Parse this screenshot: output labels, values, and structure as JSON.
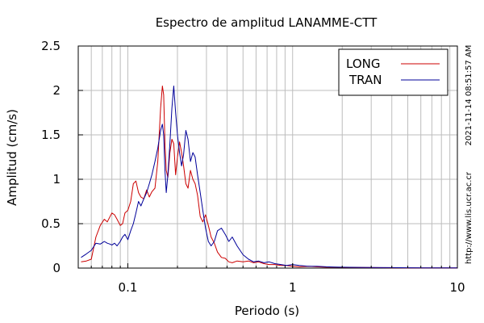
{
  "chart_data": {
    "type": "line",
    "title": "Espectro de amplitud LANAMME-CTT",
    "xlabel": "Periodo (s)",
    "ylabel": "Amplitud (cm/s)",
    "x_scale": "log",
    "xlim": [
      0.05,
      10
    ],
    "ylim": [
      0,
      2.5
    ],
    "grid": true,
    "legend_position": "top-right",
    "x_ticks": [
      {
        "value": 0.1,
        "label": "0.1"
      },
      {
        "value": 1,
        "label": "1"
      },
      {
        "value": 10,
        "label": "10"
      }
    ],
    "y_ticks": [
      {
        "value": 0,
        "label": "0"
      },
      {
        "value": 0.5,
        "label": "0.5"
      },
      {
        "value": 1,
        "label": "1"
      },
      {
        "value": 1.5,
        "label": "1.5"
      },
      {
        "value": 2,
        "label": "2"
      },
      {
        "value": 2.5,
        "label": "2.5"
      }
    ],
    "series": [
      {
        "name": "LONG",
        "color": "#cc0000",
        "x": [
          0.052,
          0.056,
          0.06,
          0.064,
          0.068,
          0.072,
          0.075,
          0.078,
          0.08,
          0.083,
          0.086,
          0.09,
          0.093,
          0.096,
          0.1,
          0.104,
          0.108,
          0.112,
          0.116,
          0.12,
          0.125,
          0.13,
          0.135,
          0.14,
          0.146,
          0.152,
          0.158,
          0.162,
          0.165,
          0.168,
          0.171,
          0.175,
          0.18,
          0.185,
          0.19,
          0.195,
          0.2,
          0.206,
          0.212,
          0.218,
          0.225,
          0.232,
          0.24,
          0.248,
          0.256,
          0.265,
          0.275,
          0.285,
          0.296,
          0.308,
          0.32,
          0.335,
          0.35,
          0.37,
          0.39,
          0.41,
          0.43,
          0.46,
          0.5,
          0.54,
          0.58,
          0.62,
          0.67,
          0.72,
          0.78,
          0.85,
          0.92,
          1.0,
          1.1,
          1.25,
          1.4,
          1.6,
          1.8,
          2.0,
          2.5,
          3.0,
          4.0,
          5.0,
          6.5,
          8.0,
          10.0
        ],
        "y": [
          0.07,
          0.08,
          0.1,
          0.35,
          0.48,
          0.55,
          0.52,
          0.58,
          0.62,
          0.6,
          0.55,
          0.48,
          0.5,
          0.62,
          0.65,
          0.75,
          0.95,
          0.98,
          0.85,
          0.8,
          0.78,
          0.88,
          0.8,
          0.86,
          0.9,
          1.2,
          1.8,
          2.05,
          1.95,
          1.4,
          1.1,
          1.02,
          1.3,
          1.45,
          1.4,
          1.05,
          1.25,
          1.42,
          1.3,
          1.15,
          0.95,
          0.9,
          1.1,
          1.0,
          0.95,
          0.82,
          0.58,
          0.52,
          0.6,
          0.48,
          0.35,
          0.28,
          0.18,
          0.12,
          0.11,
          0.07,
          0.06,
          0.08,
          0.07,
          0.08,
          0.06,
          0.07,
          0.05,
          0.04,
          0.04,
          0.03,
          0.03,
          0.02,
          0.015,
          0.02,
          0.015,
          0.01,
          0.01,
          0.008,
          0.006,
          0.005,
          0.004,
          0.003,
          0.003,
          0.002,
          0.002
        ]
      },
      {
        "name": "TRAN",
        "color": "#000099",
        "x": [
          0.052,
          0.056,
          0.06,
          0.064,
          0.068,
          0.072,
          0.075,
          0.078,
          0.08,
          0.083,
          0.086,
          0.09,
          0.093,
          0.096,
          0.1,
          0.104,
          0.108,
          0.112,
          0.116,
          0.12,
          0.125,
          0.13,
          0.135,
          0.14,
          0.146,
          0.152,
          0.158,
          0.162,
          0.165,
          0.168,
          0.171,
          0.175,
          0.18,
          0.185,
          0.19,
          0.195,
          0.2,
          0.206,
          0.212,
          0.218,
          0.225,
          0.232,
          0.24,
          0.248,
          0.256,
          0.265,
          0.275,
          0.285,
          0.296,
          0.308,
          0.32,
          0.335,
          0.35,
          0.37,
          0.39,
          0.41,
          0.43,
          0.46,
          0.5,
          0.54,
          0.58,
          0.62,
          0.67,
          0.72,
          0.78,
          0.85,
          0.92,
          1.0,
          1.1,
          1.25,
          1.4,
          1.6,
          1.8,
          2.0,
          2.5,
          3.0,
          4.0,
          5.0,
          6.5,
          8.0,
          10.0
        ],
        "y": [
          0.12,
          0.16,
          0.2,
          0.28,
          0.27,
          0.3,
          0.28,
          0.27,
          0.26,
          0.28,
          0.25,
          0.3,
          0.35,
          0.38,
          0.32,
          0.42,
          0.5,
          0.62,
          0.75,
          0.7,
          0.78,
          0.85,
          0.95,
          1.05,
          1.2,
          1.35,
          1.55,
          1.62,
          1.5,
          1.1,
          0.85,
          1.05,
          1.4,
          1.8,
          2.05,
          1.75,
          1.5,
          1.3,
          1.15,
          1.28,
          1.55,
          1.45,
          1.2,
          1.3,
          1.25,
          1.05,
          0.85,
          0.65,
          0.45,
          0.3,
          0.25,
          0.3,
          0.42,
          0.45,
          0.38,
          0.3,
          0.35,
          0.25,
          0.15,
          0.1,
          0.07,
          0.08,
          0.06,
          0.07,
          0.05,
          0.04,
          0.03,
          0.04,
          0.03,
          0.02,
          0.02,
          0.015,
          0.012,
          0.01,
          0.008,
          0.006,
          0.005,
          0.004,
          0.003,
          0.003,
          0.002
        ]
      }
    ]
  },
  "side_text": {
    "timestamp": "2021-11-14 08:51:57 AM",
    "url": "http://www.lis.ucr.ac.cr"
  }
}
